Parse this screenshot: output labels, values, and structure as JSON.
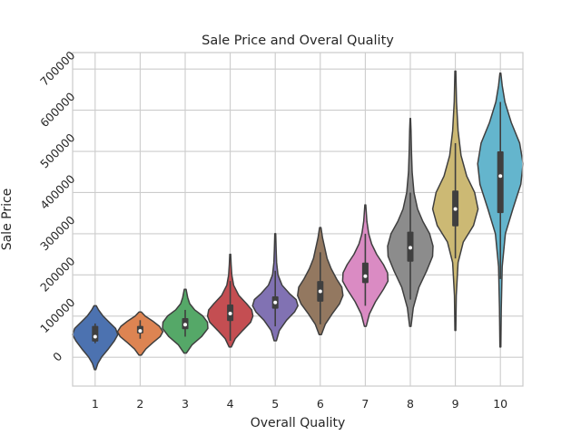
{
  "chart_data": {
    "type": "violin",
    "title": "Sale Price and Overal Quality",
    "xlabel": "Overall Quality",
    "ylabel": "Sale Price",
    "grid": true,
    "legend": "none",
    "ylim": [
      -70000,
      740000
    ],
    "yticks": [
      0,
      100000,
      200000,
      300000,
      400000,
      500000,
      600000,
      700000
    ],
    "categories": [
      "1",
      "2",
      "3",
      "4",
      "5",
      "6",
      "7",
      "8",
      "9",
      "10"
    ],
    "series": [
      {
        "category": "1",
        "color": "#4c72b0",
        "min": -30000,
        "max": 125000,
        "q1": 38000,
        "median": 50000,
        "q3": 76000,
        "whisker_low": 34000,
        "whisker_high": 82000,
        "profile": [
          [
            -30000,
            0.03
          ],
          [
            -15000,
            0.12
          ],
          [
            0,
            0.28
          ],
          [
            20000,
            0.58
          ],
          [
            40000,
            0.85
          ],
          [
            55000,
            1.0
          ],
          [
            70000,
            0.9
          ],
          [
            85000,
            0.62
          ],
          [
            100000,
            0.35
          ],
          [
            115000,
            0.15
          ],
          [
            125000,
            0.05
          ]
        ]
      },
      {
        "category": "2",
        "color": "#dd8452",
        "min": 5000,
        "max": 110000,
        "q1": 58000,
        "median": 64000,
        "q3": 76000,
        "whisker_low": 45000,
        "whisker_high": 90000,
        "profile": [
          [
            5000,
            0.05
          ],
          [
            20000,
            0.25
          ],
          [
            35000,
            0.55
          ],
          [
            50000,
            0.88
          ],
          [
            62000,
            1.0
          ],
          [
            75000,
            0.85
          ],
          [
            88000,
            0.55
          ],
          [
            100000,
            0.22
          ],
          [
            110000,
            0.05
          ]
        ]
      },
      {
        "category": "3",
        "color": "#55a868",
        "min": 10000,
        "max": 165000,
        "q1": 68000,
        "median": 79000,
        "q3": 95000,
        "whisker_low": 50000,
        "whisker_high": 115000,
        "profile": [
          [
            10000,
            0.05
          ],
          [
            30000,
            0.3
          ],
          [
            50000,
            0.72
          ],
          [
            70000,
            1.0
          ],
          [
            85000,
            0.98
          ],
          [
            100000,
            0.78
          ],
          [
            115000,
            0.42
          ],
          [
            130000,
            0.2
          ],
          [
            145000,
            0.11
          ],
          [
            165000,
            0.04
          ]
        ]
      },
      {
        "category": "4",
        "color": "#c44e52",
        "min": 25000,
        "max": 250000,
        "q1": 88000,
        "median": 106000,
        "q3": 128000,
        "whisker_low": 40000,
        "whisker_high": 185000,
        "profile": [
          [
            25000,
            0.05
          ],
          [
            45000,
            0.22
          ],
          [
            65000,
            0.55
          ],
          [
            85000,
            0.9
          ],
          [
            100000,
            1.0
          ],
          [
            115000,
            0.95
          ],
          [
            130000,
            0.72
          ],
          [
            150000,
            0.38
          ],
          [
            175000,
            0.15
          ],
          [
            200000,
            0.07
          ],
          [
            225000,
            0.04
          ],
          [
            250000,
            0.02
          ]
        ]
      },
      {
        "category": "5",
        "color": "#8172b3",
        "min": 40000,
        "max": 300000,
        "q1": 118000,
        "median": 133000,
        "q3": 148000,
        "whisker_low": 75000,
        "whisker_high": 210000,
        "profile": [
          [
            40000,
            0.05
          ],
          [
            65000,
            0.18
          ],
          [
            90000,
            0.5
          ],
          [
            110000,
            0.85
          ],
          [
            125000,
            1.0
          ],
          [
            140000,
            0.92
          ],
          [
            155000,
            0.62
          ],
          [
            175000,
            0.3
          ],
          [
            200000,
            0.12
          ],
          [
            230000,
            0.06
          ],
          [
            260000,
            0.04
          ],
          [
            300000,
            0.02
          ]
        ]
      },
      {
        "category": "6",
        "color": "#937860",
        "min": 55000,
        "max": 315000,
        "q1": 135000,
        "median": 160000,
        "q3": 185000,
        "whisker_low": 80000,
        "whisker_high": 255000,
        "profile": [
          [
            55000,
            0.05
          ],
          [
            80000,
            0.22
          ],
          [
            105000,
            0.52
          ],
          [
            130000,
            0.85
          ],
          [
            150000,
            1.0
          ],
          [
            170000,
            0.95
          ],
          [
            190000,
            0.72
          ],
          [
            215000,
            0.48
          ],
          [
            240000,
            0.3
          ],
          [
            265000,
            0.2
          ],
          [
            290000,
            0.1
          ],
          [
            315000,
            0.03
          ]
        ]
      },
      {
        "category": "7",
        "color": "#da8bc3",
        "min": 75000,
        "max": 370000,
        "q1": 180000,
        "median": 197000,
        "q3": 230000,
        "whisker_low": 125000,
        "whisker_high": 300000,
        "profile": [
          [
            75000,
            0.04
          ],
          [
            105000,
            0.18
          ],
          [
            135000,
            0.45
          ],
          [
            165000,
            0.8
          ],
          [
            185000,
            1.0
          ],
          [
            205000,
            0.98
          ],
          [
            225000,
            0.8
          ],
          [
            250000,
            0.5
          ],
          [
            275000,
            0.28
          ],
          [
            300000,
            0.15
          ],
          [
            330000,
            0.07
          ],
          [
            370000,
            0.02
          ]
        ]
      },
      {
        "category": "8",
        "color": "#8c8c8c",
        "min": 75000,
        "max": 580000,
        "q1": 232000,
        "median": 266000,
        "q3": 305000,
        "whisker_low": 140000,
        "whisker_high": 400000,
        "profile": [
          [
            75000,
            0.03
          ],
          [
            120000,
            0.13
          ],
          [
            170000,
            0.38
          ],
          [
            210000,
            0.72
          ],
          [
            245000,
            0.98
          ],
          [
            270000,
            1.0
          ],
          [
            300000,
            0.85
          ],
          [
            330000,
            0.55
          ],
          [
            360000,
            0.32
          ],
          [
            400000,
            0.16
          ],
          [
            450000,
            0.08
          ],
          [
            500000,
            0.05
          ],
          [
            550000,
            0.03
          ],
          [
            580000,
            0.01
          ]
        ]
      },
      {
        "category": "9",
        "color": "#ccb974",
        "min": 65000,
        "max": 695000,
        "q1": 318000,
        "median": 360000,
        "q3": 405000,
        "whisker_low": 240000,
        "whisker_high": 520000,
        "profile": [
          [
            65000,
            0.02
          ],
          [
            150000,
            0.04
          ],
          [
            230000,
            0.12
          ],
          [
            280000,
            0.35
          ],
          [
            320000,
            0.8
          ],
          [
            360000,
            1.0
          ],
          [
            400000,
            0.85
          ],
          [
            440000,
            0.5
          ],
          [
            490000,
            0.25
          ],
          [
            550000,
            0.12
          ],
          [
            620000,
            0.05
          ],
          [
            695000,
            0.02
          ]
        ]
      },
      {
        "category": "10",
        "color": "#64b5cd",
        "min": 25000,
        "max": 690000,
        "q1": 350000,
        "median": 440000,
        "q3": 500000,
        "whisker_low": 190000,
        "whisker_high": 620000,
        "profile": [
          [
            25000,
            0.02
          ],
          [
            120000,
            0.04
          ],
          [
            220000,
            0.08
          ],
          [
            300000,
            0.22
          ],
          [
            360000,
            0.55
          ],
          [
            420000,
            0.9
          ],
          [
            470000,
            1.0
          ],
          [
            520000,
            0.85
          ],
          [
            570000,
            0.48
          ],
          [
            620000,
            0.2
          ],
          [
            660000,
            0.08
          ],
          [
            690000,
            0.02
          ]
        ]
      }
    ]
  }
}
